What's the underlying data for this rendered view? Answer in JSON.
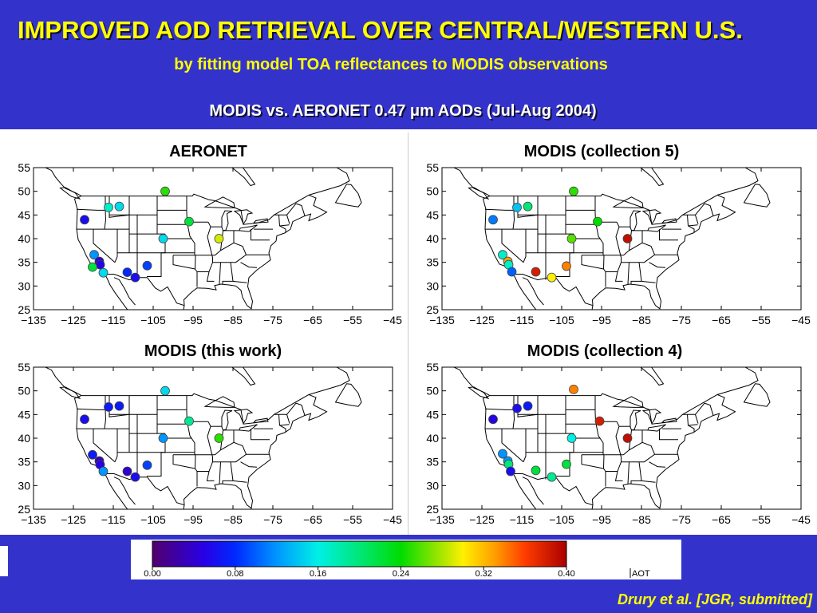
{
  "slide": {
    "title": "IMPROVED AOD RETRIEVAL OVER CENTRAL/WESTERN U.S.",
    "subtitle": "by fitting model TOA reflectances to MODIS observations",
    "heading_prefix": "MODIS vs. AERONET 0.47 ",
    "heading_mu": "μ",
    "heading_suffix": "m AODs (Jul-Aug 2004)",
    "citation": "Drury et al. [JGR, submitted]"
  },
  "axes": {
    "lon_ticks": [
      "−135",
      "−125",
      "−115",
      "−105",
      "−95",
      "−85",
      "−75",
      "−65",
      "−55",
      "−45"
    ],
    "lat_ticks": [
      "55",
      "50",
      "45",
      "40",
      "35",
      "30",
      "25"
    ]
  },
  "colorbar": {
    "ticks": [
      "0.00",
      "0.08",
      "0.16",
      "0.24",
      "0.32",
      "0.40"
    ],
    "label": "AOT",
    "range": [
      0,
      0.4
    ]
  },
  "chart_data": [
    {
      "type": "scatter",
      "panel": "AERONET",
      "x_label": "",
      "y_label": "",
      "xlim": [
        -135,
        -45
      ],
      "ylim": [
        25,
        55
      ],
      "points": [
        {
          "lon": -122.2,
          "lat": 44.0,
          "aod": 0.06
        },
        {
          "lon": -116.2,
          "lat": 46.6,
          "aod": 0.17
        },
        {
          "lon": -113.5,
          "lat": 46.8,
          "aod": 0.15
        },
        {
          "lon": -102.0,
          "lat": 50.0,
          "aod": 0.25
        },
        {
          "lon": -96.0,
          "lat": 43.6,
          "aod": 0.22
        },
        {
          "lon": -102.5,
          "lat": 40.0,
          "aod": 0.15
        },
        {
          "lon": -88.5,
          "lat": 40.0,
          "aod": 0.29
        },
        {
          "lon": -119.8,
          "lat": 36.6,
          "aod": 0.12
        },
        {
          "lon": -118.5,
          "lat": 35.2,
          "aod": 0.04
        },
        {
          "lon": -118.3,
          "lat": 34.5,
          "aod": 0.05
        },
        {
          "lon": -120.2,
          "lat": 34.0,
          "aod": 0.22
        },
        {
          "lon": -117.5,
          "lat": 32.8,
          "aod": 0.15
        },
        {
          "lon": -111.5,
          "lat": 32.9,
          "aod": 0.08
        },
        {
          "lon": -109.5,
          "lat": 31.8,
          "aod": 0.06
        },
        {
          "lon": -106.5,
          "lat": 34.3,
          "aod": 0.09
        }
      ]
    },
    {
      "type": "scatter",
      "panel": "MODIS (collection 5)",
      "x_label": "",
      "y_label": "",
      "xlim": [
        -135,
        -45
      ],
      "ylim": [
        25,
        55
      ],
      "points": [
        {
          "lon": -122.2,
          "lat": 44.0,
          "aod": 0.11
        },
        {
          "lon": -116.2,
          "lat": 46.6,
          "aod": 0.14
        },
        {
          "lon": -113.5,
          "lat": 46.8,
          "aod": 0.2
        },
        {
          "lon": -102.0,
          "lat": 50.0,
          "aod": 0.25
        },
        {
          "lon": -96.0,
          "lat": 43.6,
          "aod": 0.24
        },
        {
          "lon": -102.5,
          "lat": 40.0,
          "aod": 0.26
        },
        {
          "lon": -88.5,
          "lat": 40.0,
          "aod": 0.39
        },
        {
          "lon": -119.8,
          "lat": 36.6,
          "aod": 0.17
        },
        {
          "lon": -118.5,
          "lat": 35.2,
          "aod": 0.33
        },
        {
          "lon": -118.3,
          "lat": 34.5,
          "aod": 0.17
        },
        {
          "lon": -117.5,
          "lat": 33.0,
          "aod": 0.1
        },
        {
          "lon": -111.5,
          "lat": 33.0,
          "aod": 0.38
        },
        {
          "lon": -107.5,
          "lat": 31.8,
          "aod": 0.3
        },
        {
          "lon": -103.8,
          "lat": 34.2,
          "aod": 0.34
        }
      ]
    },
    {
      "type": "scatter",
      "panel": "MODIS (this work)",
      "x_label": "",
      "y_label": "",
      "xlim": [
        -135,
        -45
      ],
      "ylim": [
        25,
        55
      ],
      "points": [
        {
          "lon": -122.2,
          "lat": 44.0,
          "aod": 0.06
        },
        {
          "lon": -116.2,
          "lat": 46.6,
          "aod": 0.07
        },
        {
          "lon": -113.5,
          "lat": 46.8,
          "aod": 0.07
        },
        {
          "lon": -102.0,
          "lat": 50.0,
          "aod": 0.15
        },
        {
          "lon": -96.0,
          "lat": 43.6,
          "aod": 0.19
        },
        {
          "lon": -102.5,
          "lat": 40.0,
          "aod": 0.12
        },
        {
          "lon": -88.5,
          "lat": 40.0,
          "aod": 0.25
        },
        {
          "lon": -120.2,
          "lat": 36.5,
          "aod": 0.07
        },
        {
          "lon": -118.5,
          "lat": 35.2,
          "aod": 0.03
        },
        {
          "lon": -118.3,
          "lat": 34.4,
          "aod": 0.05
        },
        {
          "lon": -117.5,
          "lat": 33.0,
          "aod": 0.12
        },
        {
          "lon": -111.5,
          "lat": 33.0,
          "aod": 0.04
        },
        {
          "lon": -109.5,
          "lat": 31.8,
          "aod": 0.06
        },
        {
          "lon": -106.5,
          "lat": 34.3,
          "aod": 0.09
        }
      ]
    },
    {
      "type": "scatter",
      "panel": "MODIS (collection 4)",
      "x_label": "",
      "y_label": "",
      "xlim": [
        -135,
        -45
      ],
      "ylim": [
        25,
        55
      ],
      "points": [
        {
          "lon": -122.2,
          "lat": 44.0,
          "aod": 0.05
        },
        {
          "lon": -116.2,
          "lat": 46.3,
          "aod": 0.06
        },
        {
          "lon": -113.5,
          "lat": 46.8,
          "aod": 0.07
        },
        {
          "lon": -102.0,
          "lat": 50.3,
          "aod": 0.34
        },
        {
          "lon": -95.5,
          "lat": 43.6,
          "aod": 0.38
        },
        {
          "lon": -102.5,
          "lat": 40.0,
          "aod": 0.16
        },
        {
          "lon": -88.5,
          "lat": 40.0,
          "aod": 0.39
        },
        {
          "lon": -119.8,
          "lat": 36.7,
          "aod": 0.12
        },
        {
          "lon": -118.5,
          "lat": 35.2,
          "aod": 0.12
        },
        {
          "lon": -118.3,
          "lat": 34.5,
          "aod": 0.2
        },
        {
          "lon": -117.8,
          "lat": 33.0,
          "aod": 0.06
        },
        {
          "lon": -111.5,
          "lat": 33.2,
          "aod": 0.22
        },
        {
          "lon": -107.5,
          "lat": 31.8,
          "aod": 0.19
        },
        {
          "lon": -103.8,
          "lat": 34.5,
          "aod": 0.22
        }
      ]
    }
  ]
}
